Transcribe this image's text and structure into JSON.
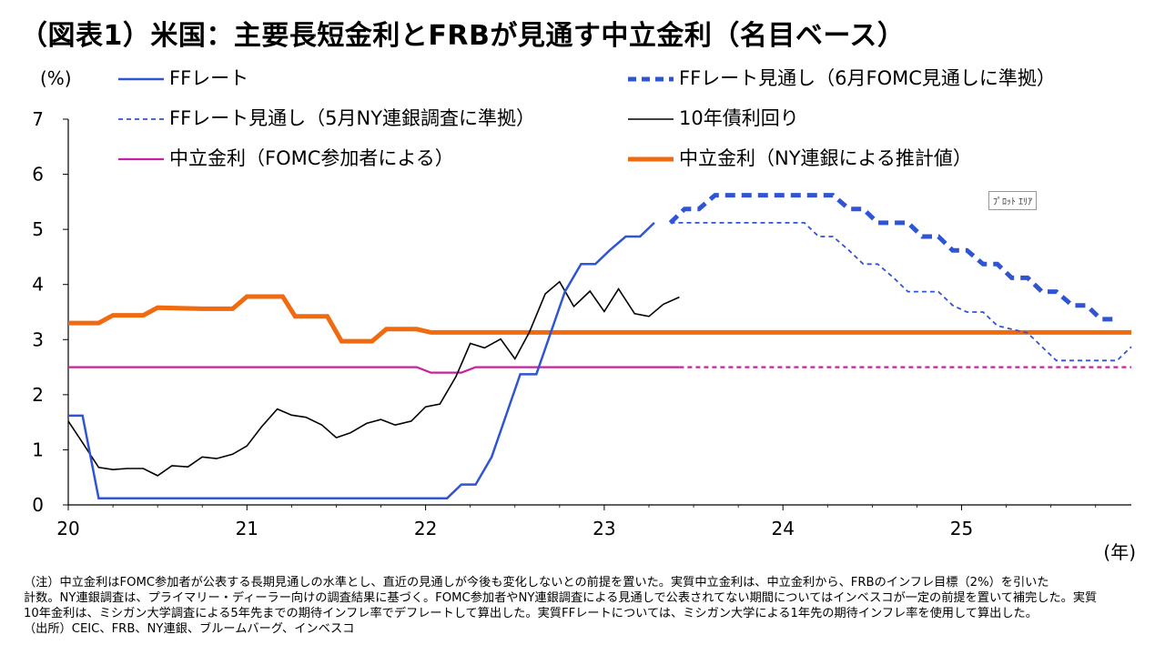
{
  "title": "（図表1）米国：主要長短金利とFRBが見通す中立金利（名目ベース）",
  "plot_area_tag": "ﾌﾟﾛｯﾄ ｴﾘｱ",
  "notes": [
    "（注）中立金利はFOMC参加者が公表する長期見通しの水準とし、直近の見通しが今後も変化しないとの前提を置いた。実質中立金利は、中立金利から、FRBのインフレ目標（2%）を引いた",
    "計数。NY連銀調査は、プライマリー・ディーラー向けの調査結果に基づく。FOMC参加者やNY連銀調査による見通しで公表されてない期間についてはインベスコが一定の前提を置いて補完した。実質",
    "10年金利は、ミシガン大学調査による5年先までの期待インフレ率でデフレートして算出した。実質FFレートについては、ミシガン大学による1年先の期待インフレ率を使用して算出した。",
    "（出所）CEIC、FRB、NY連銀、ブルームバーグ、インベスコ"
  ],
  "chart_data": {
    "type": "line",
    "y_unit": "(%)",
    "x_unit": "(年)",
    "ylim": [
      0,
      7
    ],
    "yticks": [
      "0",
      "1",
      "2",
      "3",
      "4",
      "5",
      "6",
      "7"
    ],
    "xlim": [
      2020.0,
      2025.95
    ],
    "xticks": [
      {
        "value": 2020,
        "label": "20"
      },
      {
        "value": 2021,
        "label": "21"
      },
      {
        "value": 2022,
        "label": "22"
      },
      {
        "value": 2023,
        "label": "23"
      },
      {
        "value": 2024,
        "label": "24"
      },
      {
        "value": 2025,
        "label": "25"
      }
    ],
    "grid": false,
    "series": [
      {
        "name": "FFレート",
        "color": "#2F55D4",
        "style": "solid",
        "width": 2.5,
        "points": [
          [
            2020.0,
            1.62
          ],
          [
            2020.08,
            1.62
          ],
          [
            2020.17,
            0.12
          ],
          [
            2021.0,
            0.12
          ],
          [
            2021.5,
            0.12
          ],
          [
            2022.12,
            0.12
          ],
          [
            2022.2,
            0.37
          ],
          [
            2022.28,
            0.37
          ],
          [
            2022.37,
            0.87
          ],
          [
            2022.45,
            1.62
          ],
          [
            2022.53,
            2.37
          ],
          [
            2022.62,
            2.37
          ],
          [
            2022.7,
            3.12
          ],
          [
            2022.78,
            3.87
          ],
          [
            2022.87,
            4.37
          ],
          [
            2022.95,
            4.37
          ],
          [
            2023.03,
            4.62
          ],
          [
            2023.12,
            4.87
          ],
          [
            2023.2,
            4.87
          ],
          [
            2023.28,
            5.12
          ]
        ]
      },
      {
        "name": "FFレート見通し（6月FOMC見通しに準拠）",
        "color": "#2F55D4",
        "style": "bold-dash",
        "width": 5,
        "points": [
          [
            2023.37,
            5.12
          ],
          [
            2023.45,
            5.37
          ],
          [
            2023.53,
            5.37
          ],
          [
            2023.62,
            5.62
          ],
          [
            2023.87,
            5.62
          ],
          [
            2024.12,
            5.62
          ],
          [
            2024.28,
            5.62
          ],
          [
            2024.37,
            5.37
          ],
          [
            2024.45,
            5.37
          ],
          [
            2024.53,
            5.12
          ],
          [
            2024.7,
            5.12
          ],
          [
            2024.78,
            4.87
          ],
          [
            2024.87,
            4.87
          ],
          [
            2024.95,
            4.62
          ],
          [
            2025.03,
            4.62
          ],
          [
            2025.12,
            4.37
          ],
          [
            2025.2,
            4.37
          ],
          [
            2025.28,
            4.12
          ],
          [
            2025.37,
            4.12
          ],
          [
            2025.45,
            3.87
          ],
          [
            2025.53,
            3.87
          ],
          [
            2025.62,
            3.62
          ],
          [
            2025.7,
            3.62
          ],
          [
            2025.78,
            3.37
          ],
          [
            2025.87,
            3.37
          ]
        ]
      },
      {
        "name": "FFレート見通し（5月NY連銀調査に準拠）",
        "color": "#2F55D4",
        "style": "dash",
        "width": 1.8,
        "points": [
          [
            2023.37,
            5.12
          ],
          [
            2023.95,
            5.12
          ],
          [
            2024.12,
            5.12
          ],
          [
            2024.2,
            4.87
          ],
          [
            2024.28,
            4.87
          ],
          [
            2024.37,
            4.62
          ],
          [
            2024.45,
            4.37
          ],
          [
            2024.53,
            4.37
          ],
          [
            2024.62,
            4.12
          ],
          [
            2024.7,
            3.87
          ],
          [
            2024.87,
            3.87
          ],
          [
            2024.95,
            3.62
          ],
          [
            2025.03,
            3.5
          ],
          [
            2025.12,
            3.5
          ],
          [
            2025.2,
            3.25
          ],
          [
            2025.37,
            3.12
          ],
          [
            2025.45,
            2.87
          ],
          [
            2025.53,
            2.62
          ],
          [
            2025.78,
            2.62
          ],
          [
            2025.87,
            2.62
          ],
          [
            2025.95,
            2.87
          ]
        ]
      },
      {
        "name": "10年債利回り",
        "color": "#000000",
        "style": "solid",
        "width": 1.6,
        "points": [
          [
            2020.0,
            1.52
          ],
          [
            2020.08,
            1.13
          ],
          [
            2020.17,
            0.68
          ],
          [
            2020.25,
            0.64
          ],
          [
            2020.33,
            0.66
          ],
          [
            2020.42,
            0.66
          ],
          [
            2020.5,
            0.53
          ],
          [
            2020.58,
            0.71
          ],
          [
            2020.67,
            0.69
          ],
          [
            2020.75,
            0.87
          ],
          [
            2020.83,
            0.84
          ],
          [
            2020.92,
            0.92
          ],
          [
            2021.0,
            1.07
          ],
          [
            2021.08,
            1.41
          ],
          [
            2021.17,
            1.74
          ],
          [
            2021.25,
            1.63
          ],
          [
            2021.33,
            1.59
          ],
          [
            2021.42,
            1.45
          ],
          [
            2021.5,
            1.22
          ],
          [
            2021.58,
            1.31
          ],
          [
            2021.67,
            1.48
          ],
          [
            2021.75,
            1.55
          ],
          [
            2021.83,
            1.45
          ],
          [
            2021.92,
            1.52
          ],
          [
            2022.0,
            1.78
          ],
          [
            2022.08,
            1.83
          ],
          [
            2022.17,
            2.33
          ],
          [
            2022.25,
            2.93
          ],
          [
            2022.33,
            2.85
          ],
          [
            2022.42,
            3.01
          ],
          [
            2022.5,
            2.65
          ],
          [
            2022.58,
            3.13
          ],
          [
            2022.67,
            3.83
          ],
          [
            2022.75,
            4.05
          ],
          [
            2022.83,
            3.6
          ],
          [
            2022.92,
            3.88
          ],
          [
            2023.0,
            3.51
          ],
          [
            2023.08,
            3.92
          ],
          [
            2023.17,
            3.47
          ],
          [
            2023.25,
            3.42
          ],
          [
            2023.33,
            3.64
          ],
          [
            2023.42,
            3.77
          ]
        ]
      },
      {
        "name": "中立金利（FOMC参加者による）",
        "color": "#C8219F",
        "style": "solid",
        "width": 2.2,
        "points": [
          [
            2020.0,
            2.5
          ],
          [
            2021.0,
            2.5
          ],
          [
            2021.95,
            2.5
          ],
          [
            2022.03,
            2.4
          ],
          [
            2022.2,
            2.4
          ],
          [
            2022.28,
            2.5
          ],
          [
            2023.0,
            2.5
          ],
          [
            2023.42,
            2.5
          ]
        ]
      },
      {
        "name": "中立金利（FOMC参加者による）見通し",
        "color": "#C8219F",
        "style": "dash",
        "width": 2.2,
        "points": [
          [
            2023.42,
            2.5
          ],
          [
            2025.95,
            2.5
          ]
        ]
      },
      {
        "name": "中立金利（NY連銀による推計値）",
        "color": "#F06A10",
        "style": "solid",
        "width": 5,
        "points": [
          [
            2020.0,
            3.3
          ],
          [
            2020.17,
            3.3
          ],
          [
            2020.25,
            3.44
          ],
          [
            2020.42,
            3.44
          ],
          [
            2020.5,
            3.58
          ],
          [
            2020.75,
            3.56
          ],
          [
            2020.92,
            3.56
          ],
          [
            2021.0,
            3.78
          ],
          [
            2021.2,
            3.78
          ],
          [
            2021.27,
            3.42
          ],
          [
            2021.45,
            3.42
          ],
          [
            2021.53,
            2.97
          ],
          [
            2021.7,
            2.97
          ],
          [
            2021.78,
            3.19
          ],
          [
            2021.95,
            3.19
          ],
          [
            2022.03,
            3.13
          ],
          [
            2022.5,
            3.13
          ],
          [
            2023.0,
            3.13
          ],
          [
            2024.0,
            3.13
          ],
          [
            2025.0,
            3.13
          ],
          [
            2025.95,
            3.13
          ]
        ]
      }
    ]
  },
  "legend": [
    {
      "label": "FFレート",
      "series": 0
    },
    {
      "label": "FFレート見通し（6月FOMC見通しに準拠）",
      "series": 1
    },
    {
      "label": "FFレート見通し（5月NY連銀調査に準拠）",
      "series": 2
    },
    {
      "label": "10年債利回り",
      "series": 3
    },
    {
      "label": "中立金利（FOMC参加者による）",
      "series": 4
    },
    {
      "label": "中立金利（NY連銀による推計値）",
      "series": 6
    }
  ]
}
